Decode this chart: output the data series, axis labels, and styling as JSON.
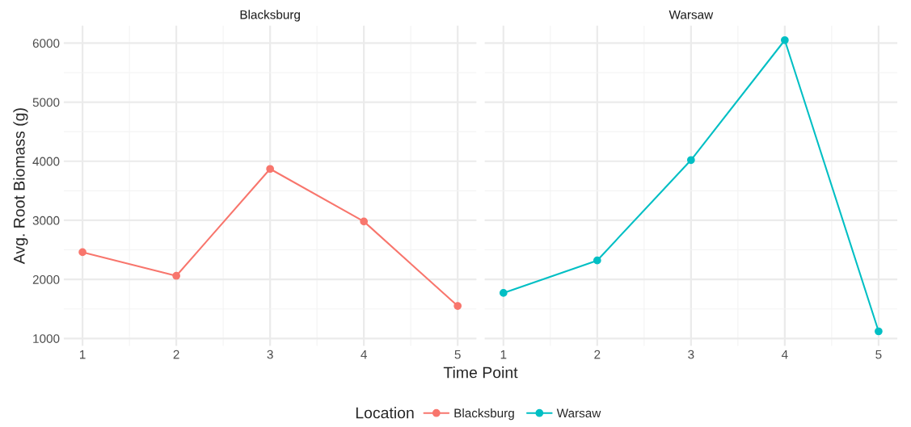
{
  "chart_data": [
    {
      "type": "line",
      "title": "Blacksburg",
      "ylabel": "Avg. Root Biomass (g)",
      "xlabel": "Time Point",
      "legend_title": "Location",
      "legend": "bottom",
      "marker": "circle",
      "grid": true,
      "x": [
        1,
        2,
        3,
        4,
        5
      ],
      "xlim": [
        0.8,
        5.2
      ],
      "xticks": [
        1,
        2,
        3,
        4,
        5
      ],
      "ylim": [
        874,
        6296
      ],
      "yticks": [
        1000,
        2000,
        3000,
        4000,
        5000,
        6000
      ],
      "series": [
        {
          "name": "Blacksburg",
          "color": "#f8766d",
          "values": [
            2460,
            2060,
            3870,
            2980,
            1550
          ]
        }
      ]
    },
    {
      "type": "line",
      "title": "Warsaw",
      "legend": "bottom",
      "marker": "circle",
      "grid": true,
      "tick_labels": "x",
      "x": [
        1,
        2,
        3,
        4,
        5
      ],
      "xlim": [
        0.8,
        5.2
      ],
      "xticks": [
        1,
        2,
        3,
        4,
        5
      ],
      "ylim": [
        874,
        6296
      ],
      "yticks": [
        1000,
        2000,
        3000,
        4000,
        5000,
        6000
      ],
      "series": [
        {
          "name": "Warsaw",
          "color": "#00bfc4",
          "values": [
            1770,
            2320,
            4020,
            6050,
            1120
          ]
        }
      ]
    }
  ]
}
